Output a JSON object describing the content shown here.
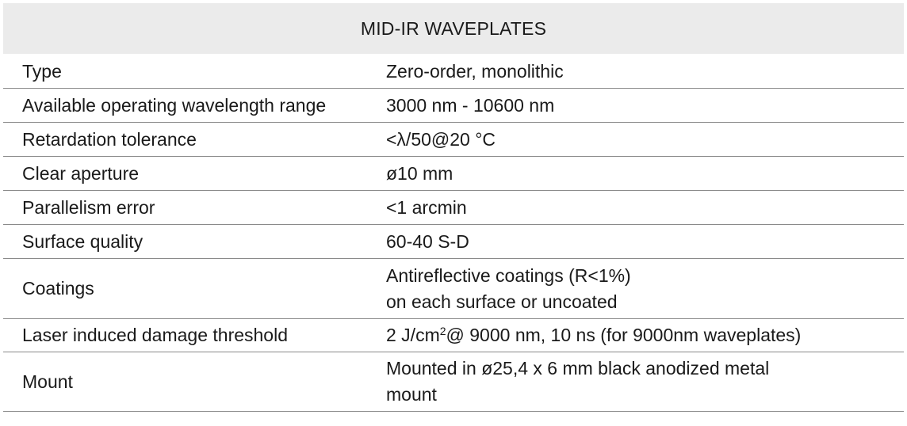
{
  "table": {
    "title": "MID-IR WAVEPLATES",
    "rows": [
      {
        "label": "Type",
        "value": "Zero-order, monolithic"
      },
      {
        "label": "Available operating wavelength range",
        "value": "3000 nm - 10600 nm"
      },
      {
        "label": "Retardation tolerance",
        "value": "<λ/50@20 °C"
      },
      {
        "label": "Clear aperture",
        "value": "ø10 mm"
      },
      {
        "label": "Parallelism error",
        "value": "<1 arcmin"
      },
      {
        "label": "Surface quality",
        "value": "60-40 S-D"
      },
      {
        "label": "Coatings",
        "value_line1": "Antireflective coatings (R<1%)",
        "value_line2": "on each surface or uncoated"
      },
      {
        "label": "Laser induced damage threshold",
        "value_pre": "2 J/cm",
        "value_sup": "2",
        "value_post": "@ 9000 nm, 10 ns (for 9000nm waveplates)"
      },
      {
        "label": "Mount",
        "value_line1": "Mounted in ø25,4 x 6 mm black anodized metal",
        "value_line2": "mount"
      }
    ]
  }
}
